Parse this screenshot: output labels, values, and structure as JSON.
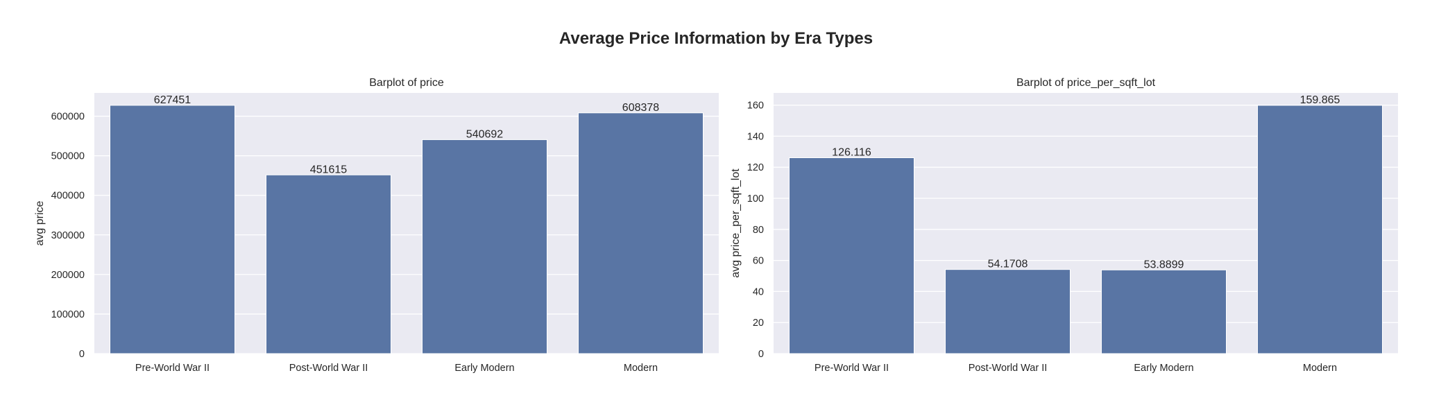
{
  "figure": {
    "title": "Average Price Information by Era Types"
  },
  "colors": {
    "bar": "#5975a4",
    "panel": "#eaeaf2",
    "grid": "#ffffff",
    "text": "#262626"
  },
  "chart_data": [
    {
      "type": "bar",
      "title": "Barplot of price",
      "xlabel": "",
      "ylabel": "avg price",
      "categories": [
        "Pre-World War II",
        "Post-World War II",
        "Early Modern",
        "Modern"
      ],
      "values": [
        627451,
        451615,
        540692,
        608378
      ],
      "data_labels": [
        "627451",
        "451615",
        "540692",
        "608378"
      ],
      "ylim": [
        0,
        658824
      ],
      "yticks": [
        0,
        100000,
        200000,
        300000,
        400000,
        500000,
        600000
      ],
      "ytick_labels": [
        "0",
        "100000",
        "200000",
        "300000",
        "400000",
        "500000",
        "600000"
      ],
      "grid": true
    },
    {
      "type": "bar",
      "title": "Barplot of price_per_sqft_lot",
      "xlabel": "",
      "ylabel": "avg price_per_sqft_lot",
      "categories": [
        "Pre-World War II",
        "Post-World War II",
        "Early Modern",
        "Modern"
      ],
      "values": [
        126.116,
        54.1708,
        53.8899,
        159.865
      ],
      "data_labels": [
        "126.116",
        "54.1708",
        "53.8899",
        "159.865"
      ],
      "ylim": [
        0,
        167.86
      ],
      "yticks": [
        0,
        20,
        40,
        60,
        80,
        100,
        120,
        140,
        160
      ],
      "ytick_labels": [
        "0",
        "20",
        "40",
        "60",
        "80",
        "100",
        "120",
        "140",
        "160"
      ],
      "grid": true
    }
  ]
}
